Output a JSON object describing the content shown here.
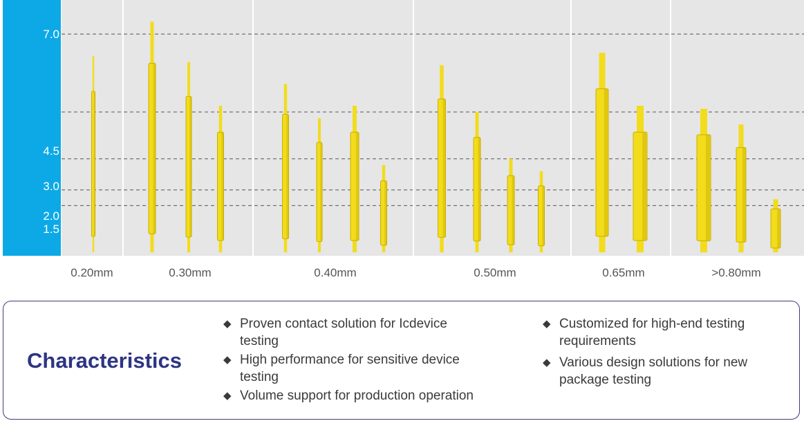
{
  "scale": {
    "ticks": [
      {
        "label": "7.0",
        "value": 7.0
      },
      {
        "label": "4.5",
        "value": 4.5
      },
      {
        "label": "3.0",
        "value": 3.0
      },
      {
        "label": "2.0",
        "value": 2.0
      },
      {
        "label": "1.5",
        "value": 1.5
      }
    ],
    "colors": {
      "bar": "#0da9e6",
      "plot_bg": "#e6e6e6",
      "dash": "#555555",
      "pin": "#f2dc1c",
      "pin_shade": "#c9b000"
    }
  },
  "groups": [
    {
      "label": "0.20mm",
      "pins": [
        6.3
      ]
    },
    {
      "label": "0.30mm",
      "pins": [
        7.4,
        6.1,
        4.7
      ]
    },
    {
      "label": "0.40mm",
      "pins": [
        5.4,
        4.3,
        4.7,
        2.8
      ]
    },
    {
      "label": "0.50mm",
      "pins": [
        6.0,
        4.5,
        3.0,
        2.6
      ]
    },
    {
      "label": "0.65mm",
      "pins": [
        6.4,
        4.7
      ]
    },
    {
      "label": ">0.80mm",
      "pins": [
        4.6,
        4.1,
        1.7
      ]
    }
  ],
  "characteristics": {
    "title": "Characteristics",
    "bullet_symbol": "◆",
    "left": [
      {
        "line1": "Proven contact solution for Icdevice",
        "line2": "testing"
      },
      {
        "line1": "High performance for sensitive device",
        "line2": "testing"
      },
      {
        "line1": "Volume support for production operation",
        "line2": ""
      }
    ],
    "right": [
      {
        "line1": "Customized for high-end testing",
        "line2": "requirements"
      },
      {
        "line1": "Various design solutions for new",
        "line2": "package testing"
      }
    ]
  }
}
